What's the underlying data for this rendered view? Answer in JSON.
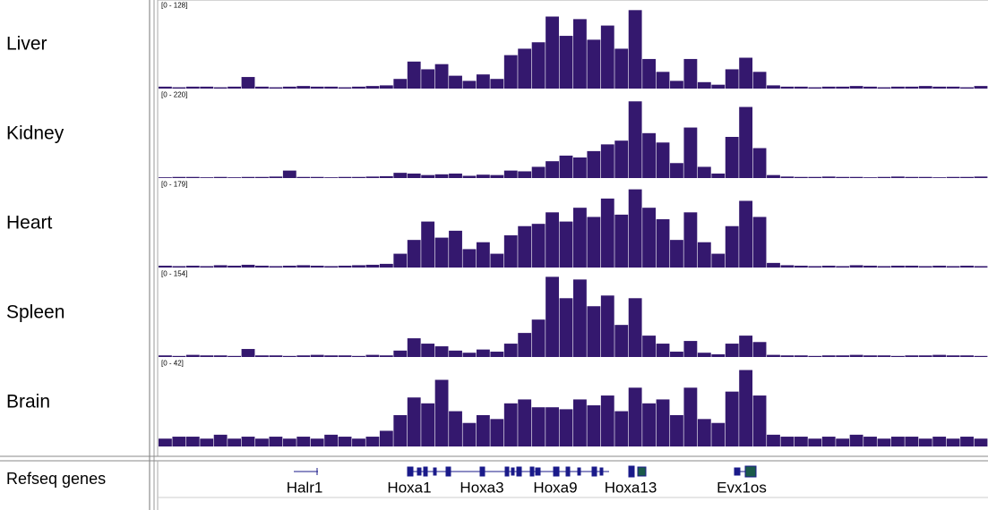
{
  "tracks": [
    {
      "name": "Liver",
      "range_label": "[0 - 128]",
      "ylim": [
        0,
        128
      ],
      "values": [
        3,
        2,
        3,
        3,
        2,
        3,
        18,
        3,
        2,
        3,
        4,
        3,
        3,
        2,
        3,
        4,
        5,
        15,
        42,
        30,
        38,
        20,
        12,
        22,
        15,
        52,
        62,
        72,
        112,
        82,
        108,
        76,
        98,
        62,
        122,
        46,
        26,
        12,
        46,
        10,
        6,
        30,
        48,
        26,
        5,
        3,
        3,
        2,
        3,
        3,
        4,
        3,
        2,
        3,
        3,
        4,
        3,
        3,
        2,
        4
      ]
    },
    {
      "name": "Kidney",
      "range_label": "[0 - 220]",
      "ylim": [
        0,
        220
      ],
      "values": [
        2,
        3,
        3,
        2,
        3,
        2,
        3,
        3,
        4,
        20,
        3,
        3,
        2,
        3,
        3,
        4,
        5,
        14,
        12,
        8,
        10,
        12,
        6,
        9,
        8,
        20,
        18,
        30,
        45,
        60,
        55,
        72,
        90,
        100,
        205,
        120,
        95,
        40,
        135,
        30,
        12,
        110,
        190,
        80,
        8,
        4,
        3,
        3,
        4,
        3,
        3,
        2,
        3,
        4,
        3,
        3,
        2,
        3,
        3,
        4
      ]
    },
    {
      "name": "Heart",
      "range_label": "[0 - 179]",
      "ylim": [
        0,
        179
      ],
      "values": [
        4,
        3,
        4,
        3,
        5,
        4,
        6,
        4,
        3,
        4,
        5,
        4,
        3,
        4,
        5,
        6,
        8,
        30,
        60,
        100,
        65,
        80,
        40,
        55,
        30,
        70,
        90,
        95,
        120,
        100,
        130,
        110,
        150,
        115,
        170,
        130,
        105,
        60,
        120,
        55,
        30,
        90,
        145,
        110,
        10,
        5,
        4,
        3,
        4,
        3,
        5,
        4,
        3,
        4,
        4,
        3,
        4,
        3,
        4,
        3
      ]
    },
    {
      "name": "Spleen",
      "range_label": "[0 - 154]",
      "ylim": [
        0,
        154
      ],
      "values": [
        3,
        2,
        4,
        3,
        3,
        2,
        15,
        3,
        3,
        2,
        3,
        4,
        3,
        3,
        2,
        4,
        3,
        12,
        35,
        25,
        20,
        12,
        8,
        14,
        10,
        25,
        45,
        70,
        150,
        110,
        145,
        95,
        115,
        60,
        110,
        40,
        25,
        10,
        30,
        8,
        5,
        25,
        40,
        28,
        4,
        3,
        3,
        2,
        3,
        3,
        4,
        3,
        3,
        2,
        3,
        3,
        4,
        3,
        3,
        2
      ]
    },
    {
      "name": "Brain",
      "range_label": "[0 - 42]",
      "ylim": [
        0,
        42
      ],
      "values": [
        4,
        5,
        5,
        4,
        6,
        4,
        5,
        4,
        5,
        4,
        5,
        4,
        6,
        5,
        4,
        5,
        8,
        16,
        25,
        22,
        34,
        18,
        12,
        16,
        14,
        22,
        24,
        20,
        20,
        19,
        24,
        21,
        26,
        18,
        30,
        22,
        24,
        16,
        30,
        14,
        12,
        28,
        39,
        26,
        6,
        5,
        5,
        4,
        5,
        4,
        6,
        5,
        4,
        5,
        5,
        4,
        5,
        4,
        5,
        4
      ]
    }
  ],
  "refseq": {
    "name": "Refseq genes",
    "genes": [
      "Halr1",
      "Hoxa1",
      "Hoxa3",
      "Hoxa9",
      "Hoxa13",
      "Evx1os"
    ]
  }
}
